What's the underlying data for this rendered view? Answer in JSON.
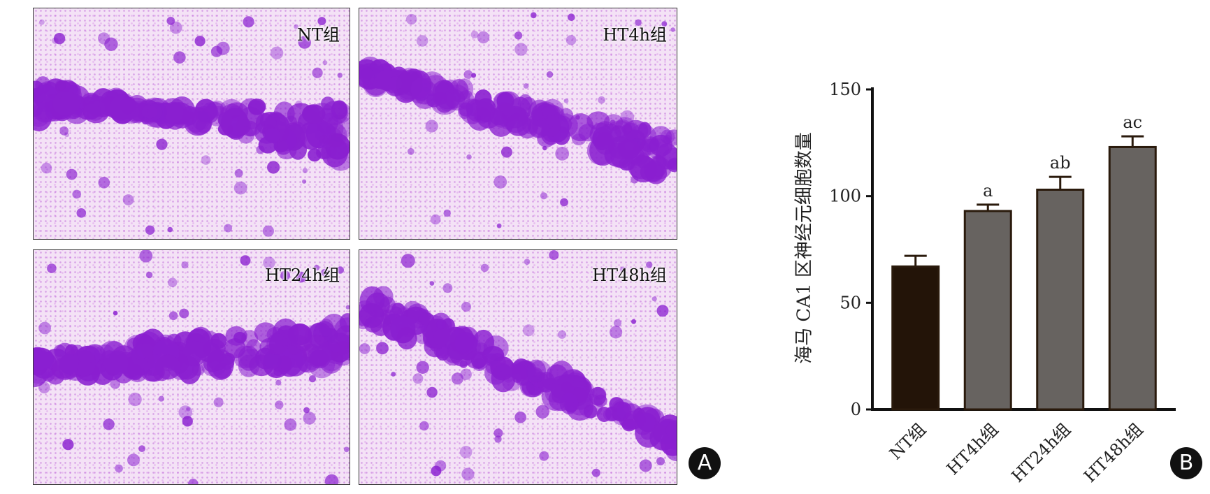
{
  "panels": [
    {
      "label": "NT组"
    },
    {
      "label": "HT4h组"
    },
    {
      "label": "HT24h组"
    },
    {
      "label": "HT48h组"
    }
  ],
  "panel_letters": {
    "a": "A",
    "b": "B"
  },
  "colors": {
    "stain": "#8a1fd0",
    "bar_control": "#231408",
    "bar_treated": "#676360",
    "bar_edge": "#2a1a0c"
  },
  "chart_data": {
    "type": "bar",
    "categories": [
      "NT组",
      "HT4h组",
      "HT24h组",
      "HT48h组"
    ],
    "values": [
      67,
      93,
      103,
      123
    ],
    "errors": [
      5,
      3,
      6,
      5
    ],
    "annotations": [
      "",
      "a",
      "ab",
      "ac"
    ],
    "ylabel": "海马 CA1 区神经元细胞数量",
    "xlabel": "",
    "ylim": [
      0,
      150
    ],
    "yticks": [
      0,
      50,
      100,
      150
    ],
    "grid": false
  }
}
